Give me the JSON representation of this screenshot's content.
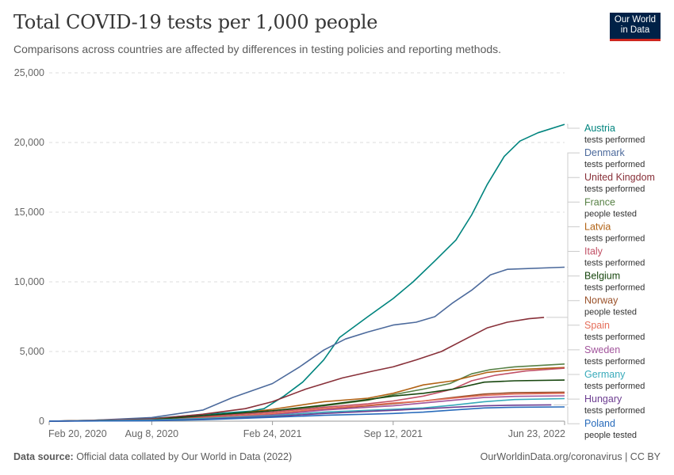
{
  "header": {
    "title": "Total COVID-19 tests per 1,000 people",
    "subtitle": "Comparisons across countries are affected by differences in testing policies and reporting methods.",
    "logo_line1": "Our World",
    "logo_line2": "in Data"
  },
  "footer": {
    "source_label": "Data source:",
    "source_text": " Official data collated by Our World in Data (2022)",
    "right_text": "OurWorldinData.org/coronavirus | CC BY"
  },
  "chart_data": {
    "type": "line",
    "title": "Total COVID-19 tests per 1,000 people",
    "subtitle": "Comparisons across countries are affected by differences in testing policies and reporting methods.",
    "xlabel": "",
    "ylabel": "",
    "ylim": [
      0,
      25000
    ],
    "yticks": [
      0,
      5000,
      10000,
      15000,
      20000,
      25000
    ],
    "ytick_labels": [
      "0",
      "5,000",
      "10,000",
      "15,000",
      "20,000",
      "25,000"
    ],
    "xlim": [
      "2020-02-20",
      "2022-06-23"
    ],
    "xticks": [
      "2020-02-20",
      "2020-08-08",
      "2021-02-24",
      "2021-09-12",
      "2022-06-23"
    ],
    "xtick_labels": [
      "Feb 20, 2020",
      "Aug 8, 2020",
      "Feb 24, 2021",
      "Sep 12, 2021",
      "Jun 23, 2022"
    ],
    "grid": "horizontal dashed",
    "legend": "right",
    "series": [
      {
        "name": "Austria",
        "sub": "tests performed",
        "color": "#00847e",
        "points": [
          [
            "2020-02-20",
            0
          ],
          [
            "2020-05-01",
            60
          ],
          [
            "2020-08-08",
            190
          ],
          [
            "2020-11-01",
            480
          ],
          [
            "2021-01-20",
            720
          ],
          [
            "2021-02-10",
            900
          ],
          [
            "2021-03-15",
            1800
          ],
          [
            "2021-04-15",
            2800
          ],
          [
            "2021-05-20",
            4400
          ],
          [
            "2021-06-15",
            6000
          ],
          [
            "2021-08-01",
            7500
          ],
          [
            "2021-09-12",
            8800
          ],
          [
            "2021-10-15",
            10000
          ],
          [
            "2021-11-20",
            11500
          ],
          [
            "2021-12-25",
            13000
          ],
          [
            "2022-01-20",
            14800
          ],
          [
            "2022-02-15",
            17000
          ],
          [
            "2022-03-15",
            19000
          ],
          [
            "2022-04-10",
            20100
          ],
          [
            "2022-05-10",
            20700
          ],
          [
            "2022-06-23",
            21300
          ]
        ]
      },
      {
        "name": "Denmark",
        "sub": "tests performed",
        "color": "#4c6a9c",
        "points": [
          [
            "2020-02-20",
            0
          ],
          [
            "2020-05-01",
            60
          ],
          [
            "2020-08-08",
            260
          ],
          [
            "2020-11-01",
            800
          ],
          [
            "2020-12-20",
            1700
          ],
          [
            "2021-02-24",
            2700
          ],
          [
            "2021-04-10",
            3900
          ],
          [
            "2021-05-20",
            5100
          ],
          [
            "2021-06-25",
            5900
          ],
          [
            "2021-08-01",
            6400
          ],
          [
            "2021-09-12",
            6900
          ],
          [
            "2021-10-20",
            7100
          ],
          [
            "2021-11-20",
            7500
          ],
          [
            "2021-12-20",
            8500
          ],
          [
            "2022-01-20",
            9400
          ],
          [
            "2022-02-20",
            10500
          ],
          [
            "2022-03-20",
            10900
          ],
          [
            "2022-06-23",
            11050
          ]
        ]
      },
      {
        "name": "United Kingdom",
        "sub": "tests performed",
        "color": "#883039",
        "points": [
          [
            "2020-02-20",
            0
          ],
          [
            "2020-05-01",
            30
          ],
          [
            "2020-08-08",
            160
          ],
          [
            "2020-11-01",
            500
          ],
          [
            "2021-01-10",
            900
          ],
          [
            "2021-02-24",
            1400
          ],
          [
            "2021-04-20",
            2300
          ],
          [
            "2021-06-20",
            3100
          ],
          [
            "2021-08-10",
            3600
          ],
          [
            "2021-09-12",
            3900
          ],
          [
            "2021-10-20",
            4400
          ],
          [
            "2021-12-01",
            5000
          ],
          [
            "2022-01-10",
            5900
          ],
          [
            "2022-02-15",
            6700
          ],
          [
            "2022-03-20",
            7100
          ],
          [
            "2022-04-25",
            7350
          ],
          [
            "2022-05-20",
            7450
          ]
        ]
      },
      {
        "name": "France",
        "sub": "people tested",
        "color": "#578145",
        "points": [
          [
            "2020-02-20",
            0
          ],
          [
            "2020-08-08",
            110
          ],
          [
            "2020-11-01",
            300
          ],
          [
            "2021-02-24",
            650
          ],
          [
            "2021-05-20",
            1100
          ],
          [
            "2021-08-01",
            1500
          ],
          [
            "2021-09-12",
            1900
          ],
          [
            "2021-11-01",
            2300
          ],
          [
            "2021-12-15",
            2700
          ],
          [
            "2022-01-20",
            3400
          ],
          [
            "2022-02-20",
            3700
          ],
          [
            "2022-04-01",
            3900
          ],
          [
            "2022-06-23",
            4100
          ]
        ]
      },
      {
        "name": "Latvia",
        "sub": "tests performed",
        "color": "#b16214",
        "points": [
          [
            "2020-02-20",
            0
          ],
          [
            "2020-08-08",
            60
          ],
          [
            "2020-11-01",
            250
          ],
          [
            "2021-02-24",
            850
          ],
          [
            "2021-05-20",
            1400
          ],
          [
            "2021-08-01",
            1650
          ],
          [
            "2021-09-12",
            2000
          ],
          [
            "2021-11-01",
            2600
          ],
          [
            "2021-12-20",
            2900
          ],
          [
            "2022-02-15",
            3500
          ],
          [
            "2022-04-01",
            3700
          ],
          [
            "2022-06-23",
            3850
          ]
        ]
      },
      {
        "name": "Italy",
        "sub": "tests performed",
        "color": "#c15065",
        "points": [
          [
            "2020-02-20",
            0
          ],
          [
            "2020-05-01",
            60
          ],
          [
            "2020-08-08",
            130
          ],
          [
            "2020-11-01",
            330
          ],
          [
            "2021-02-24",
            650
          ],
          [
            "2021-05-20",
            1000
          ],
          [
            "2021-08-01",
            1250
          ],
          [
            "2021-09-12",
            1450
          ],
          [
            "2021-11-01",
            1800
          ],
          [
            "2021-12-20",
            2300
          ],
          [
            "2022-01-20",
            2900
          ],
          [
            "2022-03-01",
            3300
          ],
          [
            "2022-04-20",
            3600
          ],
          [
            "2022-06-23",
            3800
          ]
        ]
      },
      {
        "name": "Belgium",
        "sub": "tests performed",
        "color": "#18470f",
        "points": [
          [
            "2020-02-20",
            0
          ],
          [
            "2020-08-08",
            100
          ],
          [
            "2020-11-01",
            400
          ],
          [
            "2021-02-24",
            750
          ],
          [
            "2021-05-20",
            1150
          ],
          [
            "2021-08-01",
            1550
          ],
          [
            "2021-09-12",
            1800
          ],
          [
            "2021-11-01",
            2000
          ],
          [
            "2021-12-20",
            2300
          ],
          [
            "2022-02-10",
            2800
          ],
          [
            "2022-04-01",
            2900
          ],
          [
            "2022-06-23",
            2950
          ]
        ]
      },
      {
        "name": "Norway",
        "sub": "people tested",
        "color": "#9a5129",
        "points": [
          [
            "2020-02-20",
            0
          ],
          [
            "2020-08-08",
            80
          ],
          [
            "2020-11-01",
            220
          ],
          [
            "2021-02-24",
            500
          ],
          [
            "2021-05-20",
            850
          ],
          [
            "2021-08-01",
            1100
          ],
          [
            "2021-09-12",
            1250
          ],
          [
            "2021-11-01",
            1450
          ],
          [
            "2021-12-20",
            1700
          ],
          [
            "2022-02-10",
            1950
          ],
          [
            "2022-04-01",
            2050
          ],
          [
            "2022-06-23",
            2080
          ]
        ]
      },
      {
        "name": "Spain",
        "sub": "tests performed",
        "color": "#e56e5a",
        "points": [
          [
            "2020-02-20",
            0
          ],
          [
            "2020-08-08",
            70
          ],
          [
            "2020-11-01",
            220
          ],
          [
            "2021-02-24",
            550
          ],
          [
            "2021-05-20",
            900
          ],
          [
            "2021-08-01",
            1150
          ],
          [
            "2021-09-12",
            1300
          ],
          [
            "2021-11-01",
            1450
          ],
          [
            "2021-12-20",
            1650
          ],
          [
            "2022-02-10",
            1850
          ],
          [
            "2022-04-01",
            1950
          ],
          [
            "2022-06-23",
            2000
          ]
        ]
      },
      {
        "name": "Sweden",
        "sub": "tests performed",
        "color": "#a2559c",
        "points": [
          [
            "2020-02-20",
            0
          ],
          [
            "2020-08-08",
            60
          ],
          [
            "2020-11-01",
            180
          ],
          [
            "2021-02-24",
            450
          ],
          [
            "2021-05-20",
            800
          ],
          [
            "2021-08-01",
            1000
          ],
          [
            "2021-09-12",
            1100
          ],
          [
            "2021-11-01",
            1300
          ],
          [
            "2021-12-20",
            1500
          ],
          [
            "2022-02-10",
            1700
          ],
          [
            "2022-04-01",
            1780
          ],
          [
            "2022-06-23",
            1820
          ]
        ]
      },
      {
        "name": "Germany",
        "sub": "tests performed",
        "color": "#38aaba",
        "points": [
          [
            "2020-02-20",
            0
          ],
          [
            "2020-08-08",
            80
          ],
          [
            "2020-11-01",
            200
          ],
          [
            "2021-02-24",
            400
          ],
          [
            "2021-05-20",
            650
          ],
          [
            "2021-08-01",
            780
          ],
          [
            "2021-09-12",
            850
          ],
          [
            "2021-11-01",
            950
          ],
          [
            "2021-12-20",
            1150
          ],
          [
            "2022-02-10",
            1400
          ],
          [
            "2022-04-01",
            1550
          ],
          [
            "2022-06-23",
            1620
          ]
        ]
      },
      {
        "name": "Hungary",
        "sub": "tests performed",
        "color": "#6d3e91",
        "points": [
          [
            "2020-02-20",
            0
          ],
          [
            "2020-08-08",
            40
          ],
          [
            "2020-11-01",
            130
          ],
          [
            "2021-02-24",
            330
          ],
          [
            "2021-05-20",
            550
          ],
          [
            "2021-08-01",
            700
          ],
          [
            "2021-09-12",
            780
          ],
          [
            "2021-11-01",
            880
          ],
          [
            "2021-12-20",
            1000
          ],
          [
            "2022-02-10",
            1100
          ],
          [
            "2022-04-01",
            1150
          ],
          [
            "2022-06-01",
            1170
          ]
        ]
      },
      {
        "name": "Poland",
        "sub": "people tested",
        "color": "#286bbb",
        "points": [
          [
            "2020-02-20",
            0
          ],
          [
            "2020-08-08",
            30
          ],
          [
            "2020-11-01",
            100
          ],
          [
            "2021-02-24",
            280
          ],
          [
            "2021-05-20",
            420
          ],
          [
            "2021-08-01",
            500
          ],
          [
            "2021-09-12",
            550
          ],
          [
            "2021-11-01",
            650
          ],
          [
            "2021-12-20",
            800
          ],
          [
            "2022-02-10",
            950
          ],
          [
            "2022-04-01",
            1000
          ],
          [
            "2022-06-23",
            1020
          ]
        ]
      }
    ]
  }
}
